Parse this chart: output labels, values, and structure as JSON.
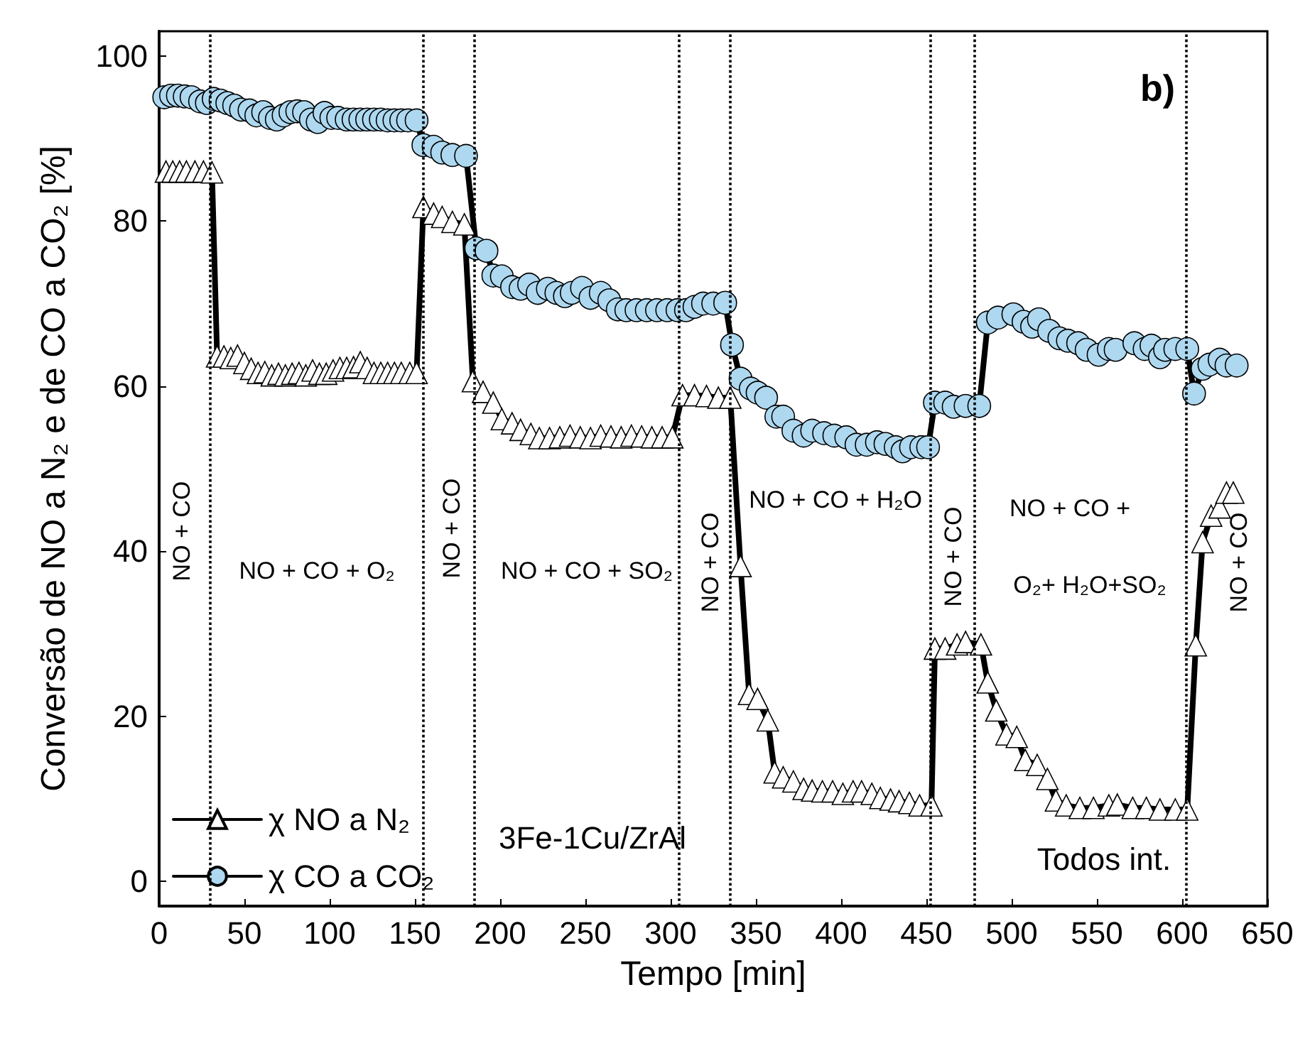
{
  "chart_data": {
    "type": "line",
    "title": "b)",
    "xlabel": "Tempo [min]",
    "ylabel": "Conversão de NO a N₂ e de CO a CO₂ [%]",
    "xlim": [
      0,
      650
    ],
    "xticks": [
      0,
      50,
      100,
      150,
      200,
      250,
      300,
      350,
      400,
      450,
      500,
      550,
      600,
      650
    ],
    "ylim": [
      -3,
      103
    ],
    "yticks": [
      0,
      20,
      40,
      60,
      80,
      100
    ],
    "grid": false,
    "legend": "bottom left",
    "line_style": "solid",
    "series": [
      {
        "name": "χ NO a N₂",
        "color": "#ffffff",
        "marker": "triangle",
        "x": [
          4,
          8,
          12,
          16,
          21,
          26,
          31,
          34,
          38,
          42,
          46,
          50,
          54,
          58,
          62,
          66,
          70,
          74,
          78,
          82,
          86,
          90,
          94,
          98,
          102,
          106,
          110,
          114,
          118,
          122,
          126,
          130,
          134,
          138,
          142,
          147,
          151,
          155,
          161,
          166,
          172,
          179,
          184,
          190,
          196,
          201,
          207,
          212,
          218,
          223,
          229,
          235,
          241,
          247,
          253,
          259,
          265,
          271,
          277,
          283,
          289,
          295,
          301,
          307,
          314,
          321,
          328,
          335,
          341,
          346,
          351,
          357,
          361,
          366,
          372,
          378,
          383,
          389,
          395,
          401,
          407,
          412,
          418,
          423,
          429,
          434,
          440,
          446,
          453,
          455,
          461,
          468,
          473,
          482,
          486,
          491,
          497,
          503,
          508,
          515,
          521,
          526,
          532,
          540,
          548,
          557,
          562,
          571,
          579,
          587,
          596,
          603,
          608,
          612,
          617,
          622,
          626,
          630
        ],
        "values": [
          86,
          86,
          86,
          86,
          86,
          86,
          85.9,
          63.6,
          63.6,
          63.4,
          63.7,
          62.8,
          62.1,
          61.6,
          61.7,
          61.3,
          61.5,
          61.3,
          61.5,
          61.6,
          61.3,
          61.9,
          61.5,
          61.5,
          61.9,
          62.2,
          62.2,
          62.3,
          62.9,
          62.2,
          61.6,
          61.6,
          61.6,
          61.6,
          61.6,
          61.6,
          61.6,
          81.7,
          80.9,
          80.5,
          79.9,
          79.6,
          60.6,
          59.3,
          58,
          56,
          55.5,
          54.7,
          54.2,
          53.7,
          53.7,
          53.8,
          54,
          53.8,
          53.7,
          54,
          53.9,
          53.8,
          54,
          53.9,
          53.8,
          53.8,
          53.8,
          58.9,
          58.9,
          58.8,
          58.6,
          58.6,
          38.2,
          22.7,
          22.1,
          19.5,
          13.2,
          12.6,
          12.1,
          11.2,
          11,
          10.9,
          10.9,
          10.6,
          10.9,
          10.9,
          10.6,
          10.1,
          9.9,
          9.7,
          9.5,
          9.2,
          9.2,
          28.2,
          28.2,
          28.7,
          29,
          28.7,
          24.1,
          20.7,
          17.8,
          17.5,
          14.7,
          14.1,
          12.4,
          9.8,
          9.2,
          8.9,
          8.9,
          9.2,
          9.3,
          8.9,
          8.9,
          8.7,
          8.7,
          8.7,
          28.6,
          41.1,
          44.3,
          45.3,
          47.1,
          47.1
        ]
      },
      {
        "name": "χ CO a CO₂",
        "color": "#add8f0",
        "marker": "circle",
        "x": [
          3,
          7,
          11,
          15,
          19,
          24,
          28,
          32,
          36,
          40,
          44,
          48,
          53,
          57,
          61,
          65,
          69,
          73,
          77,
          81,
          85,
          89,
          93,
          97,
          101,
          105,
          110,
          114,
          118,
          122,
          126,
          130,
          134,
          138,
          142,
          146,
          151,
          155,
          161,
          166,
          172,
          180,
          186,
          192,
          196,
          201,
          207,
          212,
          217,
          222,
          228,
          233,
          238,
          242,
          248,
          253,
          259,
          264,
          269,
          274,
          280,
          286,
          292,
          298,
          304,
          309,
          314,
          319,
          325,
          332,
          336,
          341,
          347,
          351,
          356,
          362,
          366,
          372,
          378,
          383,
          390,
          396,
          403,
          409,
          415,
          421,
          426,
          432,
          436,
          441,
          447,
          451,
          455,
          461,
          466,
          473,
          481,
          486,
          492,
          501,
          507,
          512,
          516,
          522,
          528,
          533,
          539,
          544,
          551,
          557,
          561,
          572,
          578,
          582,
          587,
          590,
          596,
          603,
          607,
          612,
          616,
          622,
          626,
          632
        ],
        "values": [
          95,
          95.2,
          95.2,
          95.1,
          95,
          94.5,
          94.3,
          94.8,
          94.6,
          94.3,
          94,
          93.5,
          93.4,
          92.8,
          93.2,
          92.5,
          92.3,
          92.8,
          93.2,
          93.3,
          93.2,
          92.3,
          92,
          93.1,
          92.5,
          92.5,
          92.3,
          92.3,
          92.3,
          92.3,
          92.3,
          92.3,
          92.2,
          92.2,
          92.2,
          92.2,
          92.2,
          89.2,
          89,
          88.3,
          88,
          87.9,
          76.7,
          76.4,
          73.4,
          73.3,
          72,
          71.8,
          72.3,
          71.3,
          71.8,
          71.3,
          70.9,
          71.3,
          71.9,
          70.7,
          71.3,
          70.4,
          69.3,
          69.2,
          69.2,
          69.2,
          69.2,
          69.2,
          69.2,
          69.2,
          69.6,
          70,
          70,
          70.1,
          65,
          60.9,
          59.7,
          59.2,
          58.6,
          56.3,
          56.3,
          54.6,
          54,
          54.6,
          54.3,
          54,
          53.8,
          52.9,
          52.9,
          53.2,
          53,
          52.6,
          52.1,
          52.6,
          52.6,
          52.6,
          58,
          58,
          57.5,
          57.6,
          57.6,
          67.7,
          68.3,
          68.7,
          67.8,
          67.2,
          68.1,
          66.7,
          65.8,
          65.5,
          65.2,
          64.4,
          63.8,
          64.5,
          64.4,
          65.2,
          64.5,
          64.9,
          63.5,
          64.4,
          64.5,
          64.5,
          59.1,
          62.1,
          62.6,
          63.2,
          62.5,
          62.5
        ]
      }
    ],
    "ref_lines": [
      {
        "axis": "x",
        "value": 30,
        "line_style": "dotted"
      },
      {
        "axis": "x",
        "value": 155,
        "line_style": "dotted"
      },
      {
        "axis": "x",
        "value": 185,
        "line_style": "dotted"
      },
      {
        "axis": "x",
        "value": 305,
        "line_style": "dotted"
      },
      {
        "axis": "x",
        "value": 335,
        "line_style": "dotted"
      },
      {
        "axis": "x",
        "value": 452,
        "line_style": "dotted"
      },
      {
        "axis": "x",
        "value": 478,
        "line_style": "dotted"
      },
      {
        "axis": "x",
        "value": 602,
        "line_style": "dotted"
      }
    ],
    "annotations": [
      "NO + CO",
      "NO + CO + O₂",
      "NO + CO",
      "NO + CO + SO₂",
      "NO + CO",
      "NO + CO + H₂O",
      "NO + CO",
      "NO + CO +",
      "O₂+ H₂O+SO₂",
      "NO + CO",
      "3Fe-1Cu/ZrAl",
      "Todos int."
    ]
  }
}
